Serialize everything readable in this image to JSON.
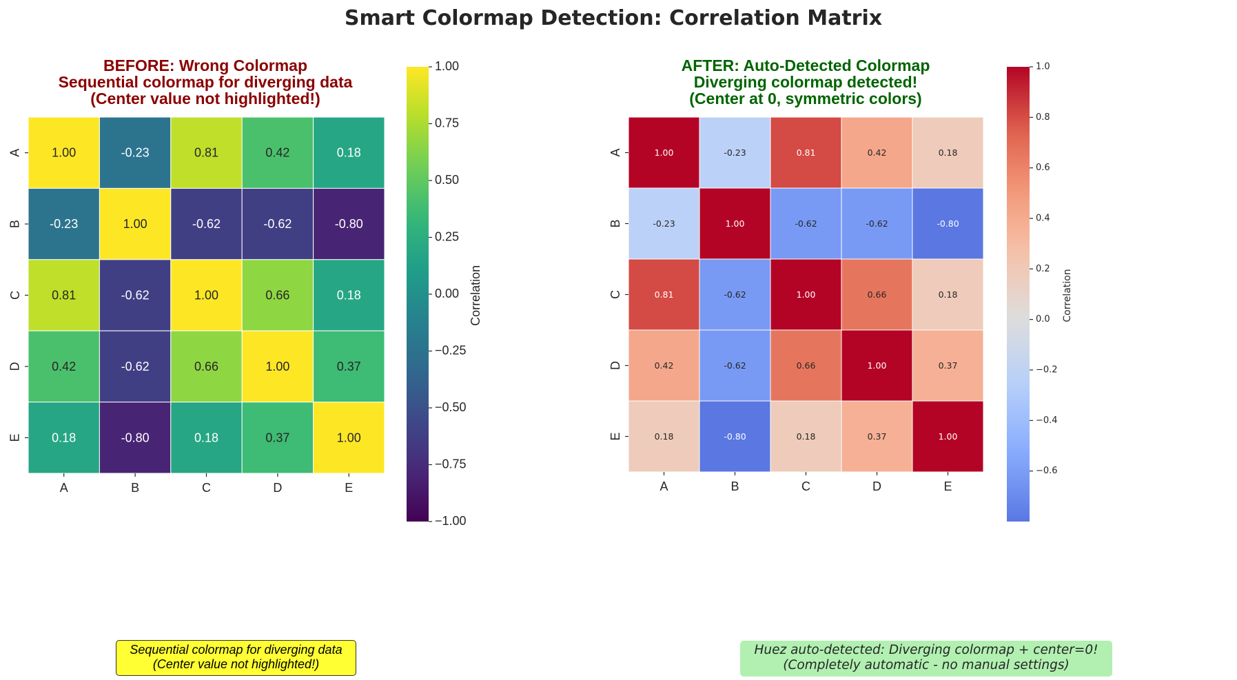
{
  "figure": {
    "suptitle": "Smart Colormap Detection: Correlation Matrix"
  },
  "colors": {
    "before_title": "#8b0000",
    "after_title": "#006400",
    "note_left_bg": "#ffff33",
    "note_right_bg": "#b1f0b1"
  },
  "chart_data": [
    {
      "type": "heatmap",
      "title_lines": [
        "BEFORE: Wrong Colormap",
        "Sequential colormap for diverging data",
        "(Center value not highlighted!)"
      ],
      "colormap": "viridis",
      "x_labels": [
        "A",
        "B",
        "C",
        "D",
        "E"
      ],
      "y_labels": [
        "A",
        "B",
        "C",
        "D",
        "E"
      ],
      "values": [
        [
          1.0,
          -0.23,
          0.81,
          0.42,
          0.18
        ],
        [
          -0.23,
          1.0,
          -0.62,
          -0.62,
          -0.8
        ],
        [
          0.81,
          -0.62,
          1.0,
          0.66,
          0.18
        ],
        [
          0.42,
          -0.62,
          0.66,
          1.0,
          0.37
        ],
        [
          0.18,
          -0.8,
          0.18,
          0.37,
          1.0
        ]
      ],
      "annotations": [
        [
          "1.00",
          "-0.23",
          "0.81",
          "0.42",
          "0.18"
        ],
        [
          "-0.23",
          "1.00",
          "-0.62",
          "-0.62",
          "-0.80"
        ],
        [
          "0.81",
          "-0.62",
          "1.00",
          "0.66",
          "0.18"
        ],
        [
          "0.42",
          "-0.62",
          "0.66",
          "1.00",
          "0.37"
        ],
        [
          "0.18",
          "-0.80",
          "0.18",
          "0.37",
          "1.00"
        ]
      ],
      "colorbar": {
        "label": "Correlation",
        "vmin": -1.0,
        "vmax": 1.0,
        "ticks": [
          1.0,
          0.75,
          0.5,
          0.25,
          0.0,
          -0.25,
          -0.5,
          -0.75,
          -1.0
        ],
        "tick_labels": [
          "1.00",
          "0.75",
          "0.50",
          "0.25",
          "0.00",
          "−0.25",
          "−0.50",
          "−0.75",
          "−1.00"
        ]
      },
      "note": [
        "Sequential colormap for diverging data",
        "(Center value not highlighted!)"
      ]
    },
    {
      "type": "heatmap",
      "title_lines": [
        "AFTER: Auto-Detected Colormap",
        "Diverging colormap detected!",
        "(Center at 0, symmetric colors)"
      ],
      "colormap": "coolwarm",
      "center": 0,
      "x_labels": [
        "A",
        "B",
        "C",
        "D",
        "E"
      ],
      "y_labels": [
        "A",
        "B",
        "C",
        "D",
        "E"
      ],
      "values": [
        [
          1.0,
          -0.23,
          0.81,
          0.42,
          0.18
        ],
        [
          -0.23,
          1.0,
          -0.62,
          -0.62,
          -0.8
        ],
        [
          0.81,
          -0.62,
          1.0,
          0.66,
          0.18
        ],
        [
          0.42,
          -0.62,
          0.66,
          1.0,
          0.37
        ],
        [
          0.18,
          -0.8,
          0.18,
          0.37,
          1.0
        ]
      ],
      "annotations": [
        [
          "1.00",
          "-0.23",
          "0.81",
          "0.42",
          "0.18"
        ],
        [
          "-0.23",
          "1.00",
          "-0.62",
          "-0.62",
          "-0.80"
        ],
        [
          "0.81",
          "-0.62",
          "1.00",
          "0.66",
          "0.18"
        ],
        [
          "0.42",
          "-0.62",
          "0.66",
          "1.00",
          "0.37"
        ],
        [
          "0.18",
          "-0.80",
          "0.18",
          "0.37",
          "1.00"
        ]
      ],
      "colorbar": {
        "label": "Correlation",
        "vmin": -0.8,
        "vmax": 1.0,
        "ticks": [
          1.0,
          0.8,
          0.6,
          0.4,
          0.2,
          0.0,
          -0.2,
          -0.4,
          -0.6
        ],
        "tick_labels": [
          "1.0",
          "0.8",
          "0.6",
          "0.4",
          "0.2",
          "0.0",
          "−0.2",
          "−0.4",
          "−0.6"
        ]
      },
      "note": [
        "Huez auto-detected: Diverging colormap + center=0!",
        "(Completely automatic - no manual settings)"
      ]
    }
  ]
}
